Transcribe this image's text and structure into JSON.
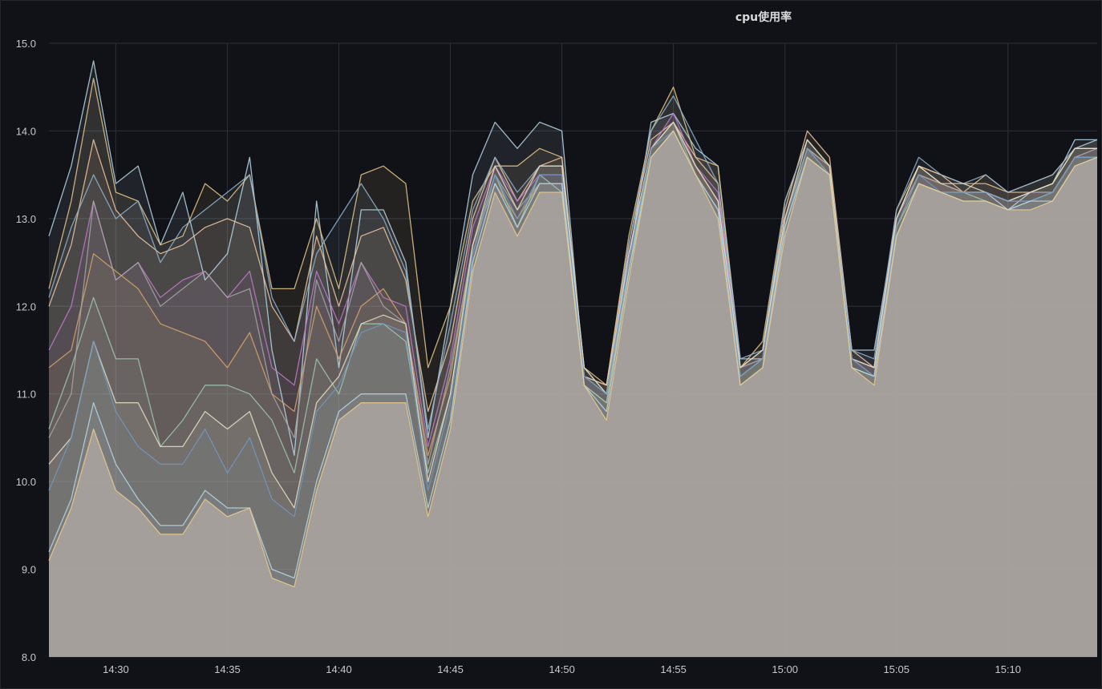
{
  "panel": {
    "title": "cpu使用率"
  },
  "chart_data": {
    "type": "area",
    "title": "cpu使用率",
    "xlabel": "",
    "ylabel": "",
    "ylim": [
      8.0,
      15.0
    ],
    "y_ticks": [
      "8.0",
      "9.0",
      "10.0",
      "11.0",
      "12.0",
      "13.0",
      "14.0",
      "15.0"
    ],
    "x_range": [
      "14:27",
      "15:14"
    ],
    "x_ticks": [
      "14:30",
      "14:35",
      "14:40",
      "14:45",
      "14:50",
      "14:55",
      "15:00",
      "15:05",
      "15:10"
    ],
    "grid": true,
    "legend": "none",
    "colors": {
      "background": "#111217",
      "grid": "#2c3038",
      "fill": "#85797a",
      "palette": [
        "#b7d8e6",
        "#e8c98a",
        "#f2c8a0",
        "#8fb4d0",
        "#c17ac9",
        "#d7a36a",
        "#9fc7b0",
        "#a6a6a6",
        "#e5e0c4",
        "#6f98c2"
      ]
    },
    "x": [
      "14:27",
      "14:28",
      "14:29",
      "14:30",
      "14:31",
      "14:32",
      "14:33",
      "14:34",
      "14:35",
      "14:36",
      "14:37",
      "14:38",
      "14:39",
      "14:40",
      "14:41",
      "14:42",
      "14:43",
      "14:44",
      "14:45",
      "14:46",
      "14:47",
      "14:48",
      "14:49",
      "14:50",
      "14:51",
      "14:52",
      "14:53",
      "14:54",
      "14:55",
      "14:56",
      "14:57",
      "14:58",
      "14:59",
      "15:00",
      "15:01",
      "15:02",
      "15:03",
      "15:04",
      "15:05",
      "15:06",
      "15:07",
      "15:08",
      "15:09",
      "15:10",
      "15:11",
      "15:12",
      "15:13",
      "15:14"
    ],
    "series": [
      {
        "values": [
          12.8,
          13.6,
          14.8,
          13.4,
          13.6,
          12.7,
          13.3,
          12.3,
          12.6,
          13.7,
          11.5,
          10.3,
          13.2,
          11.3,
          13.1,
          13.1,
          12.5,
          10.5,
          12.0,
          13.5,
          14.1,
          13.8,
          14.1,
          14.0,
          11.2,
          11.1,
          12.5,
          14.1,
          14.2,
          13.8,
          13.6,
          11.4,
          11.4,
          13.0,
          13.8,
          13.6,
          11.5,
          11.5,
          13.0,
          13.6,
          13.4,
          13.3,
          13.3,
          13.1,
          13.3,
          13.4,
          13.9,
          13.9
        ]
      },
      {
        "values": [
          12.2,
          13.2,
          14.6,
          13.3,
          13.2,
          12.7,
          12.8,
          13.4,
          13.2,
          13.5,
          12.2,
          12.2,
          13.0,
          12.2,
          13.5,
          13.6,
          13.4,
          11.3,
          12.0,
          13.2,
          13.6,
          13.6,
          13.8,
          13.7,
          11.3,
          11.1,
          12.8,
          14.0,
          14.5,
          13.7,
          13.6,
          11.3,
          11.6,
          13.2,
          13.9,
          13.6,
          11.4,
          11.3,
          13.1,
          13.6,
          13.5,
          13.4,
          13.4,
          13.3,
          13.4,
          13.5,
          13.8,
          13.9
        ]
      },
      {
        "values": [
          12.0,
          12.7,
          13.9,
          13.1,
          12.8,
          12.6,
          12.7,
          12.9,
          13.0,
          12.9,
          12.0,
          11.6,
          12.8,
          12.0,
          12.8,
          12.9,
          12.3,
          10.8,
          11.6,
          13.0,
          13.7,
          13.2,
          13.6,
          13.7,
          11.2,
          11.1,
          12.7,
          13.9,
          14.1,
          13.7,
          13.4,
          11.3,
          11.5,
          13.1,
          14.0,
          13.7,
          11.5,
          11.3,
          13.0,
          13.6,
          13.5,
          13.3,
          13.5,
          13.3,
          13.3,
          13.4,
          13.8,
          13.8
        ]
      },
      {
        "values": [
          12.1,
          12.9,
          13.5,
          13.0,
          13.2,
          12.5,
          12.9,
          13.1,
          13.3,
          13.5,
          12.1,
          11.6,
          12.6,
          13.0,
          13.4,
          13.0,
          12.4,
          10.6,
          11.8,
          13.1,
          13.7,
          13.3,
          13.6,
          13.6,
          11.3,
          11.0,
          12.7,
          14.0,
          14.4,
          13.9,
          13.4,
          11.4,
          11.5,
          13.2,
          13.9,
          13.6,
          11.5,
          11.4,
          13.1,
          13.7,
          13.5,
          13.4,
          13.5,
          13.3,
          13.4,
          13.5,
          13.8,
          13.9
        ]
      },
      {
        "values": [
          11.5,
          12.0,
          13.2,
          12.3,
          12.5,
          12.1,
          12.3,
          12.4,
          12.1,
          12.4,
          11.3,
          11.1,
          12.4,
          11.8,
          12.5,
          12.1,
          12.0,
          10.4,
          11.4,
          12.9,
          13.6,
          13.2,
          13.5,
          13.5,
          11.2,
          11.0,
          12.6,
          13.8,
          14.2,
          13.6,
          13.3,
          11.3,
          11.4,
          13.0,
          13.8,
          13.6,
          11.4,
          11.3,
          13.0,
          13.5,
          13.4,
          13.3,
          13.3,
          13.2,
          13.3,
          13.3,
          13.7,
          13.8
        ]
      },
      {
        "values": [
          11.3,
          11.5,
          12.6,
          12.4,
          12.2,
          11.8,
          11.7,
          11.6,
          11.3,
          11.7,
          11.0,
          10.8,
          12.0,
          11.4,
          12.0,
          12.2,
          11.8,
          10.3,
          11.2,
          12.7,
          13.4,
          13.0,
          13.4,
          13.4,
          11.1,
          10.9,
          12.5,
          13.8,
          14.1,
          13.6,
          13.2,
          11.2,
          11.4,
          13.0,
          13.8,
          13.6,
          11.3,
          11.2,
          12.9,
          13.5,
          13.4,
          13.3,
          13.3,
          13.2,
          13.2,
          13.3,
          13.7,
          13.7
        ]
      },
      {
        "values": [
          10.6,
          11.3,
          12.1,
          11.4,
          11.4,
          10.4,
          10.7,
          11.1,
          11.1,
          11.0,
          10.7,
          10.1,
          11.4,
          11.0,
          11.8,
          11.8,
          11.6,
          10.1,
          11.0,
          12.6,
          13.5,
          12.9,
          13.5,
          13.3,
          11.1,
          10.9,
          12.4,
          13.8,
          14.1,
          13.5,
          13.1,
          11.2,
          11.4,
          12.9,
          13.8,
          13.5,
          11.3,
          11.2,
          12.9,
          13.4,
          13.3,
          13.3,
          13.2,
          13.1,
          13.2,
          13.3,
          13.7,
          13.7
        ]
      },
      {
        "values": [
          10.5,
          11.0,
          13.2,
          12.3,
          12.5,
          12.0,
          12.2,
          12.4,
          12.1,
          12.2,
          11.0,
          10.5,
          12.3,
          11.6,
          12.5,
          12.0,
          11.8,
          10.2,
          11.3,
          12.7,
          13.5,
          13.1,
          13.4,
          13.4,
          11.2,
          11.0,
          12.5,
          13.8,
          14.1,
          13.6,
          13.2,
          11.3,
          11.4,
          13.0,
          13.8,
          13.6,
          11.4,
          11.2,
          13.0,
          13.5,
          13.4,
          13.3,
          13.3,
          13.2,
          13.3,
          13.3,
          13.7,
          13.8
        ]
      },
      {
        "values": [
          10.2,
          10.5,
          11.6,
          10.9,
          10.9,
          10.4,
          10.4,
          10.8,
          10.6,
          10.8,
          10.1,
          9.7,
          10.9,
          11.2,
          11.8,
          11.9,
          11.8,
          10.0,
          11.0,
          12.7,
          13.6,
          13.1,
          13.6,
          13.6,
          11.3,
          11.0,
          12.6,
          13.8,
          14.1,
          13.6,
          13.2,
          11.3,
          11.5,
          13.0,
          13.9,
          13.6,
          11.4,
          11.3,
          13.0,
          13.6,
          13.4,
          13.4,
          13.3,
          13.2,
          13.3,
          13.4,
          13.8,
          13.8
        ]
      },
      {
        "values": [
          9.9,
          10.5,
          11.6,
          10.8,
          10.4,
          10.2,
          10.2,
          10.6,
          10.1,
          10.5,
          9.8,
          9.6,
          10.8,
          11.1,
          11.7,
          11.8,
          11.7,
          9.9,
          10.9,
          12.6,
          13.5,
          13.0,
          13.5,
          13.5,
          11.2,
          11.0,
          12.5,
          13.8,
          14.0,
          13.5,
          13.1,
          11.2,
          11.4,
          12.9,
          13.8,
          13.5,
          11.4,
          11.2,
          12.9,
          13.5,
          13.3,
          13.3,
          13.3,
          13.2,
          13.2,
          13.3,
          13.7,
          13.7
        ]
      },
      {
        "values": [
          9.2,
          9.8,
          10.9,
          10.2,
          9.8,
          9.5,
          9.5,
          9.9,
          9.7,
          9.7,
          9.0,
          8.9,
          10.0,
          10.8,
          11.0,
          11.0,
          11.0,
          9.7,
          10.7,
          12.5,
          13.4,
          12.9,
          13.4,
          13.4,
          11.1,
          10.8,
          12.4,
          13.7,
          14.0,
          13.5,
          13.1,
          11.1,
          11.3,
          12.9,
          13.7,
          13.5,
          11.3,
          11.2,
          12.8,
          13.4,
          13.3,
          13.2,
          13.2,
          13.1,
          13.2,
          13.2,
          13.6,
          13.7
        ]
      },
      {
        "values": [
          9.1,
          9.7,
          10.6,
          9.9,
          9.7,
          9.4,
          9.4,
          9.8,
          9.6,
          9.7,
          8.9,
          8.8,
          9.9,
          10.7,
          10.9,
          10.9,
          10.9,
          9.6,
          10.6,
          12.4,
          13.3,
          12.8,
          13.3,
          13.3,
          11.1,
          10.7,
          12.3,
          13.7,
          14.0,
          13.5,
          13.0,
          11.1,
          11.3,
          12.8,
          13.7,
          13.5,
          11.3,
          11.1,
          12.8,
          13.4,
          13.3,
          13.2,
          13.2,
          13.1,
          13.1,
          13.2,
          13.6,
          13.7
        ]
      }
    ]
  }
}
